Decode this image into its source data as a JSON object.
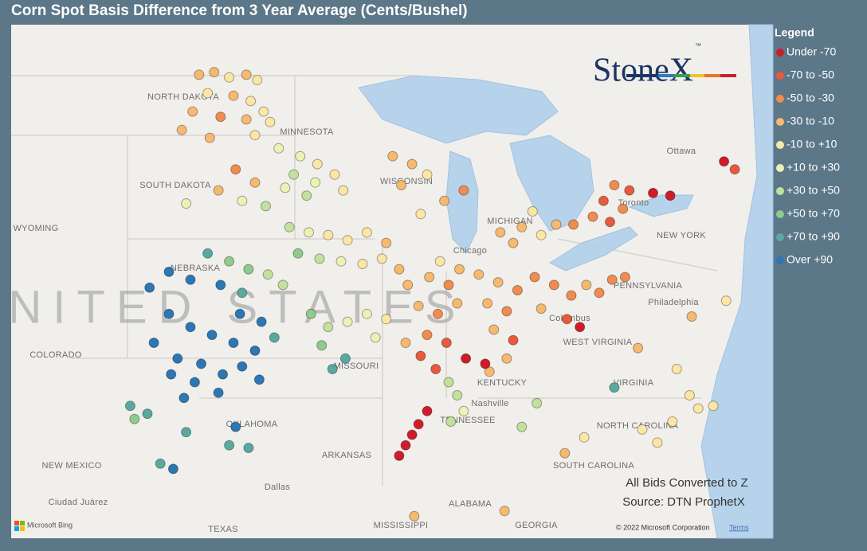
{
  "title": "Corn Spot Basis Difference from 3 Year Average (Cents/Bushel)",
  "logo": "StoneX",
  "logo_mark": "™",
  "legend": {
    "title": "Legend",
    "items": [
      {
        "label": "Under -70",
        "color": "#d01c2a"
      },
      {
        "label": "-70 to -50",
        "color": "#e95a3d"
      },
      {
        "label": "-50 to -30",
        "color": "#f08c4f"
      },
      {
        "label": "-30 to -10",
        "color": "#f6b96f"
      },
      {
        "label": "-10 to +10",
        "color": "#fce6a4"
      },
      {
        "label": "+10 to +30",
        "color": "#eaf2b4"
      },
      {
        "label": "+30 to +50",
        "color": "#c2e19c"
      },
      {
        "label": "+50 to +70",
        "color": "#8ecb8c"
      },
      {
        "label": "+70 to +90",
        "color": "#5aa9a0"
      },
      {
        "label": "Over +90",
        "color": "#2c77b4"
      }
    ]
  },
  "notes": [
    "All Bids Converted to Z",
    "Source: DTN ProphetX"
  ],
  "attribution": {
    "provider": "Microsoft Bing",
    "copyright": "© 2022 Microsoft Corporation",
    "terms": "Terms"
  },
  "country": "UNITED STATES",
  "places": [
    "NORTH DAKOTA",
    "SOUTH DAKOTA",
    "MINNESOTA",
    "WISCONSIN",
    "MICHIGAN",
    "NEBRASKA",
    "WYOMING",
    "COLORADO",
    "MISSOURI",
    "KENTUCKY",
    "TENNESSEE",
    "OKLAHOMA",
    "ARKANSAS",
    "NEW MEXICO",
    "TEXAS",
    "MISSISSIPPI",
    "ALABAMA",
    "GEORGIA",
    "SOUTH CAROLINA",
    "NORTH CAROLINA",
    "VIRGINIA",
    "WEST VIRGINIA",
    "PENNSYLVANIA",
    "NEW YORK",
    "Chicago",
    "Columbus",
    "Nashville",
    "Dallas",
    "Ottawa",
    "Toronto",
    "Philadelphia",
    "Ciudad Juárez"
  ],
  "points": [
    [
      -100.2,
      48.6,
      3
    ],
    [
      -99.5,
      48.7,
      3
    ],
    [
      -98.8,
      48.5,
      4
    ],
    [
      -98.0,
      48.6,
      3
    ],
    [
      -97.5,
      48.4,
      4
    ],
    [
      -99.8,
      47.9,
      4
    ],
    [
      -98.6,
      47.8,
      3
    ],
    [
      -97.8,
      47.6,
      4
    ],
    [
      -100.5,
      47.2,
      3
    ],
    [
      -99.2,
      47.0,
      2
    ],
    [
      -98.0,
      46.9,
      3
    ],
    [
      -97.2,
      47.2,
      4
    ],
    [
      -101.0,
      46.5,
      3
    ],
    [
      -99.7,
      46.2,
      3
    ],
    [
      -97.6,
      46.3,
      4
    ],
    [
      -96.9,
      46.8,
      4
    ],
    [
      -96.5,
      45.8,
      5
    ],
    [
      -95.5,
      45.5,
      5
    ],
    [
      -94.7,
      45.2,
      4
    ],
    [
      -95.8,
      44.8,
      6
    ],
    [
      -94.8,
      44.5,
      5
    ],
    [
      -93.9,
      44.8,
      4
    ],
    [
      -93.5,
      44.2,
      4
    ],
    [
      -95.2,
      44.0,
      6
    ],
    [
      -96.2,
      44.3,
      5
    ],
    [
      -98.5,
      45.0,
      2
    ],
    [
      -97.6,
      44.5,
      3
    ],
    [
      -98.2,
      43.8,
      5
    ],
    [
      -97.1,
      43.6,
      6
    ],
    [
      -99.3,
      44.2,
      3
    ],
    [
      -100.8,
      43.7,
      5
    ],
    [
      -91.2,
      45.5,
      3
    ],
    [
      -90.3,
      45.2,
      3
    ],
    [
      -89.6,
      44.8,
      4
    ],
    [
      -90.8,
      44.4,
      3
    ],
    [
      -88.8,
      43.8,
      3
    ],
    [
      -89.9,
      43.3,
      4
    ],
    [
      -87.9,
      44.2,
      2
    ],
    [
      -96.0,
      42.8,
      6
    ],
    [
      -95.1,
      42.6,
      5
    ],
    [
      -94.2,
      42.5,
      4
    ],
    [
      -93.3,
      42.3,
      4
    ],
    [
      -92.4,
      42.6,
      4
    ],
    [
      -91.5,
      42.2,
      3
    ],
    [
      -95.6,
      41.8,
      7
    ],
    [
      -94.6,
      41.6,
      6
    ],
    [
      -93.6,
      41.5,
      5
    ],
    [
      -92.6,
      41.4,
      4
    ],
    [
      -91.7,
      41.6,
      4
    ],
    [
      -90.9,
      41.2,
      3
    ],
    [
      -99.8,
      41.8,
      8
    ],
    [
      -98.8,
      41.5,
      7
    ],
    [
      -97.9,
      41.2,
      7
    ],
    [
      -97.0,
      41.0,
      6
    ],
    [
      -96.3,
      40.6,
      6
    ],
    [
      -99.2,
      40.6,
      9
    ],
    [
      -98.2,
      40.3,
      8
    ],
    [
      -100.6,
      40.8,
      9
    ],
    [
      -101.6,
      41.1,
      9
    ],
    [
      -102.5,
      40.5,
      9
    ],
    [
      -101.6,
      39.5,
      9
    ],
    [
      -100.6,
      39.0,
      9
    ],
    [
      -99.6,
      38.7,
      9
    ],
    [
      -98.6,
      38.4,
      9
    ],
    [
      -97.6,
      38.1,
      9
    ],
    [
      -96.7,
      38.6,
      8
    ],
    [
      -101.2,
      37.8,
      9
    ],
    [
      -100.1,
      37.6,
      9
    ],
    [
      -99.1,
      37.2,
      9
    ],
    [
      -98.2,
      37.5,
      9
    ],
    [
      -97.4,
      37.0,
      9
    ],
    [
      -102.3,
      38.4,
      9
    ],
    [
      -100.4,
      36.9,
      9
    ],
    [
      -99.3,
      36.5,
      9
    ],
    [
      -100.9,
      36.3,
      9
    ],
    [
      -101.5,
      37.2,
      9
    ],
    [
      -98.3,
      39.5,
      9
    ],
    [
      -97.3,
      39.2,
      9
    ],
    [
      -98.8,
      34.5,
      8
    ],
    [
      -97.9,
      34.4,
      8
    ],
    [
      -98.5,
      35.2,
      9
    ],
    [
      -102.0,
      33.8,
      8
    ],
    [
      -101.4,
      33.6,
      9
    ],
    [
      -95.0,
      39.5,
      7
    ],
    [
      -94.2,
      39.0,
      6
    ],
    [
      -93.3,
      39.2,
      5
    ],
    [
      -92.4,
      39.5,
      5
    ],
    [
      -91.5,
      39.3,
      4
    ],
    [
      -94.5,
      38.3,
      7
    ],
    [
      -93.4,
      37.8,
      8
    ],
    [
      -94.0,
      37.4,
      8
    ],
    [
      -92.0,
      38.6,
      5
    ],
    [
      -90.6,
      38.4,
      3
    ],
    [
      -90.5,
      40.6,
      3
    ],
    [
      -89.5,
      40.9,
      3
    ],
    [
      -88.6,
      40.6,
      2
    ],
    [
      -89.0,
      41.5,
      4
    ],
    [
      -88.1,
      41.2,
      3
    ],
    [
      -90.0,
      39.8,
      3
    ],
    [
      -89.1,
      39.5,
      2
    ],
    [
      -88.2,
      39.9,
      3
    ],
    [
      -89.6,
      38.7,
      2
    ],
    [
      -88.7,
      38.4,
      1
    ],
    [
      -89.9,
      37.9,
      1
    ],
    [
      -89.2,
      37.4,
      1
    ],
    [
      -87.2,
      41.0,
      3
    ],
    [
      -86.3,
      40.7,
      3
    ],
    [
      -85.4,
      40.4,
      2
    ],
    [
      -86.8,
      39.9,
      3
    ],
    [
      -85.9,
      39.6,
      2
    ],
    [
      -86.5,
      38.9,
      3
    ],
    [
      -85.6,
      38.5,
      1
    ],
    [
      -84.6,
      40.9,
      2
    ],
    [
      -83.7,
      40.6,
      2
    ],
    [
      -82.9,
      40.2,
      2
    ],
    [
      -82.2,
      40.6,
      3
    ],
    [
      -81.6,
      40.3,
      2
    ],
    [
      -84.3,
      39.7,
      3
    ],
    [
      -83.1,
      39.3,
      1
    ],
    [
      -82.5,
      39.0,
      0
    ],
    [
      -81.0,
      40.8,
      2
    ],
    [
      -80.4,
      40.9,
      2
    ],
    [
      -86.2,
      42.6,
      3
    ],
    [
      -85.2,
      42.8,
      3
    ],
    [
      -84.3,
      42.5,
      4
    ],
    [
      -83.6,
      42.9,
      3
    ],
    [
      -85.6,
      42.2,
      3
    ],
    [
      -84.7,
      43.4,
      4
    ],
    [
      -82.8,
      42.9,
      2
    ],
    [
      -81.9,
      43.2,
      2
    ],
    [
      -81.1,
      43.0,
      1
    ],
    [
      -80.5,
      43.5,
      2
    ],
    [
      -81.4,
      43.8,
      1
    ],
    [
      -80.2,
      44.2,
      1
    ],
    [
      -79.1,
      44.1,
      0
    ],
    [
      -78.3,
      44.0,
      0
    ],
    [
      -75.8,
      45.3,
      0
    ],
    [
      -75.3,
      45.0,
      1
    ],
    [
      -80.9,
      44.4,
      2
    ],
    [
      -88.6,
      36.9,
      6
    ],
    [
      -88.2,
      36.4,
      6
    ],
    [
      -87.9,
      35.8,
      5
    ],
    [
      -88.5,
      35.4,
      6
    ],
    [
      -86.7,
      37.3,
      3
    ],
    [
      -85.9,
      37.8,
      3
    ],
    [
      -87.8,
      37.8,
      0
    ],
    [
      -86.9,
      37.6,
      0
    ],
    [
      -84.5,
      36.1,
      6
    ],
    [
      -85.2,
      35.2,
      6
    ],
    [
      -90.0,
      35.3,
      0
    ],
    [
      -90.3,
      34.9,
      0
    ],
    [
      -90.6,
      34.5,
      0
    ],
    [
      -90.9,
      34.1,
      0
    ],
    [
      -89.6,
      35.8,
      0
    ],
    [
      -79.8,
      38.2,
      3
    ],
    [
      -78.0,
      37.4,
      4
    ],
    [
      -77.4,
      36.4,
      4
    ],
    [
      -77.0,
      35.9,
      4
    ],
    [
      -78.2,
      35.4,
      4
    ],
    [
      -79.6,
      35.1,
      4
    ],
    [
      -78.9,
      34.6,
      4
    ],
    [
      -76.3,
      36.0,
      4
    ],
    [
      -75.7,
      40.0,
      4
    ],
    [
      -77.3,
      39.4,
      3
    ],
    [
      -82.3,
      34.8,
      4
    ],
    [
      -80.9,
      36.7,
      8
    ],
    [
      -83.2,
      34.2,
      3
    ],
    [
      -86.0,
      32.0,
      3
    ],
    [
      -90.2,
      31.8,
      3
    ],
    [
      -103.4,
      36.0,
      8
    ],
    [
      -103.2,
      35.5,
      7
    ],
    [
      -102.6,
      35.7,
      8
    ],
    [
      -100.8,
      35.0,
      8
    ]
  ]
}
